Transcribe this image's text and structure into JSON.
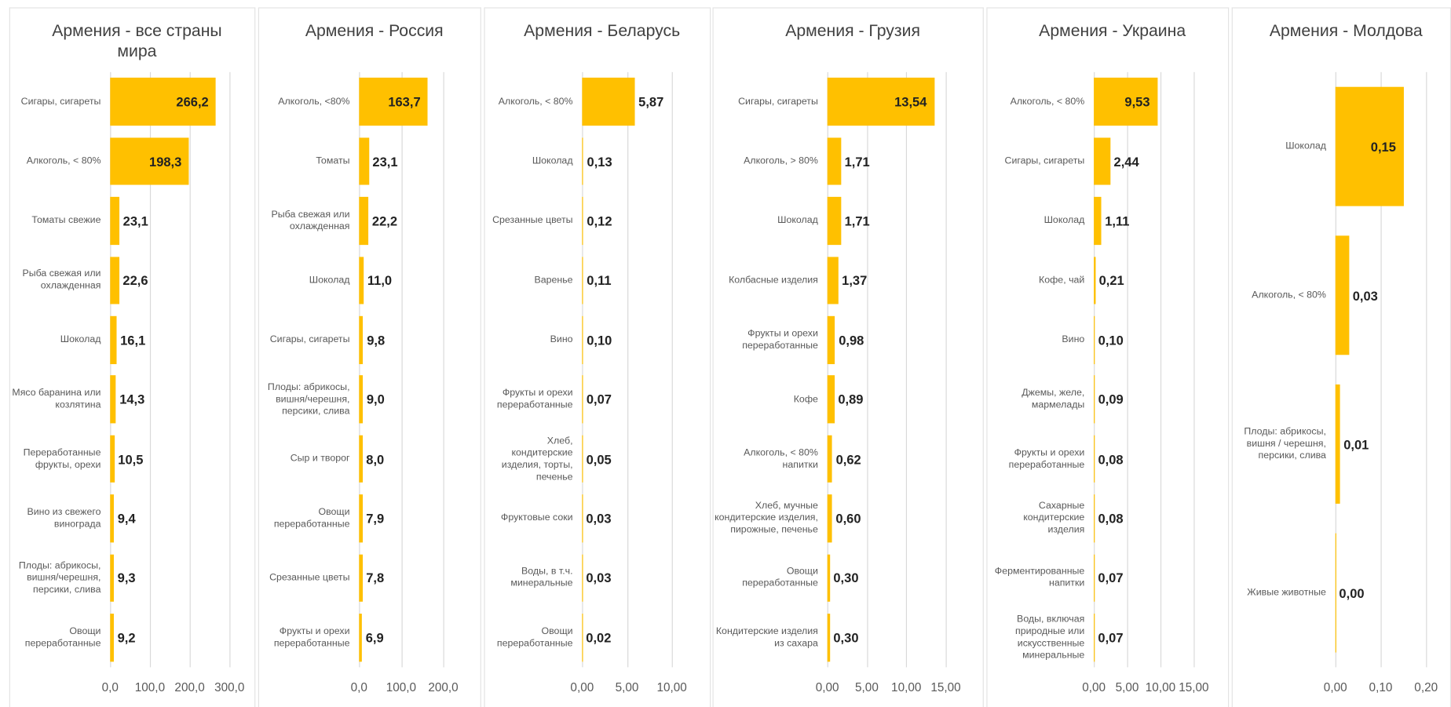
{
  "chart_data": [
    {
      "type": "bar",
      "orientation": "horizontal",
      "title": "Армения - все страны мира",
      "color": "#FFC000",
      "categories": [
        "Сигары, сигареты",
        "Алкоголь, < 80%",
        "Томаты свежие",
        "Рыба свежая или охлажденная",
        "Шоколад",
        "Мясо баранина или козлятина",
        "Переработанные фрукты, орехи",
        "Вино из свежего винограда",
        "Плоды: абрикосы, вишня/черешня, персики, слива",
        "Овощи переработанные"
      ],
      "values": [
        266.2,
        198.3,
        23.1,
        22.6,
        16.1,
        14.3,
        10.5,
        9.4,
        9.3,
        9.2
      ],
      "value_labels": [
        "266,2",
        "198,3",
        "23,1",
        "22,6",
        "16,1",
        "14,3",
        "10,5",
        "9,4",
        "9,3",
        "9,2"
      ],
      "xlim": [
        0,
        300
      ],
      "xticks": [
        {
          "value": 0,
          "label": "0,0"
        },
        {
          "value": 100,
          "label": "100,0"
        },
        {
          "value": 200,
          "label": "200,0"
        },
        {
          "value": 300,
          "label": "300,0"
        }
      ],
      "grid": true
    },
    {
      "type": "bar",
      "orientation": "horizontal",
      "title": "Армения - Россия",
      "color": "#FFC000",
      "categories": [
        "Алкоголь, <80%",
        "Томаты",
        "Рыба свежая или охлажденная",
        "Шоколад",
        "Сигары, сигареты",
        "Плоды: абрикосы, вишня/черешня, персики, слива",
        "Сыр и творог",
        "Овощи переработанные",
        "Срезанные цветы",
        "Фрукты и орехи переработанные"
      ],
      "values": [
        163.7,
        23.1,
        22.2,
        11.0,
        9.8,
        9.0,
        8.0,
        7.9,
        7.8,
        6.9
      ],
      "value_labels": [
        "163,7",
        "23,1",
        "22,2",
        "11,0",
        "9,8",
        "9,0",
        "8,0",
        "7,9",
        "7,8",
        "6,9"
      ],
      "xlim": [
        0,
        200
      ],
      "xticks": [
        {
          "value": 0,
          "label": "0,0"
        },
        {
          "value": 100,
          "label": "100,0"
        },
        {
          "value": 200,
          "label": "200,0"
        }
      ],
      "grid": true
    },
    {
      "type": "bar",
      "orientation": "horizontal",
      "title": "Армения - Беларусь",
      "color": "#FFC000",
      "categories": [
        "Алкоголь, < 80%",
        "Шоколад",
        "Срезанные цветы",
        "Варенье",
        "Вино",
        "Фрукты и орехи переработанные",
        "Хлеб, кондитерские изделия, торты, печенье",
        "Фруктовые соки",
        "Воды, в т.ч. минеральные",
        "Овощи переработанные"
      ],
      "values": [
        5.87,
        0.13,
        0.12,
        0.11,
        0.1,
        0.07,
        0.05,
        0.03,
        0.03,
        0.02
      ],
      "value_labels": [
        "5,87",
        "0,13",
        "0,12",
        "0,11",
        "0,10",
        "0,07",
        "0,05",
        "0,03",
        "0,03",
        "0,02"
      ],
      "xlim": [
        0,
        10
      ],
      "xticks": [
        {
          "value": 0,
          "label": "0,00"
        },
        {
          "value": 5,
          "label": "5,00"
        },
        {
          "value": 10,
          "label": "10,00"
        }
      ],
      "grid": true
    },
    {
      "type": "bar",
      "orientation": "horizontal",
      "title": "Армения - Грузия",
      "color": "#FFC000",
      "categories": [
        "Сигары, сигареты",
        "Алкоголь, > 80%",
        "Шоколад",
        "Колбасные изделия",
        "Фрукты и орехи переработанные",
        "Кофе",
        "Алкоголь, < 80% напитки",
        "Хлеб, мучные кондитерские изделия, пирожные, печенье",
        "Овощи переработанные",
        "Кондитерские изделия из сахара"
      ],
      "values": [
        13.54,
        1.71,
        1.71,
        1.37,
        0.98,
        0.89,
        0.62,
        0.6,
        0.3,
        0.3
      ],
      "value_labels": [
        "13,54",
        "1,71",
        "1,71",
        "1,37",
        "0,98",
        "0,89",
        "0,62",
        "0,60",
        "0,30",
        "0,30"
      ],
      "xlim": [
        0,
        15
      ],
      "xticks": [
        {
          "value": 0,
          "label": "0,00"
        },
        {
          "value": 5,
          "label": "5,00"
        },
        {
          "value": 10,
          "label": "10,00"
        },
        {
          "value": 15,
          "label": "15,00"
        }
      ],
      "grid": true
    },
    {
      "type": "bar",
      "orientation": "horizontal",
      "title": "Армения - Украина",
      "color": "#FFC000",
      "categories": [
        "Алкоголь,  < 80%",
        "Сигары, сигареты",
        "Шоколад",
        "Кофе, чай",
        "Вино",
        "Джемы, желе, мармелады",
        "Фрукты и орехи переработанные",
        "Сахарные кондитерские изделия",
        "Ферментированные напитки",
        "Воды, включая природные или искусственные минеральные"
      ],
      "values": [
        9.53,
        2.44,
        1.11,
        0.21,
        0.1,
        0.09,
        0.08,
        0.08,
        0.07,
        0.07
      ],
      "value_labels": [
        "9,53",
        "2,44",
        "1,11",
        "0,21",
        "0,10",
        "0,09",
        "0,08",
        "0,08",
        "0,07",
        "0,07"
      ],
      "xlim": [
        0,
        15
      ],
      "xticks": [
        {
          "value": 0,
          "label": "0,00"
        },
        {
          "value": 5,
          "label": "5,00"
        },
        {
          "value": 10,
          "label": "10,00"
        },
        {
          "value": 15,
          "label": "15,00"
        }
      ],
      "grid": true
    },
    {
      "type": "bar",
      "orientation": "horizontal",
      "title": "Армения - Молдова",
      "color": "#FFC000",
      "categories": [
        "Шоколад",
        "Алкоголь, < 80%",
        "Плоды: абрикосы, вишня / черешня, персики, слива",
        "Живые животные"
      ],
      "values": [
        0.15,
        0.03,
        0.01,
        0.0
      ],
      "value_labels": [
        "0,15",
        "0,03",
        "0,01",
        "0,00"
      ],
      "xlim": [
        0,
        0.2
      ],
      "xticks": [
        {
          "value": 0,
          "label": "0,00"
        },
        {
          "value": 0.1,
          "label": "0,10"
        },
        {
          "value": 0.2,
          "label": "0,20"
        }
      ],
      "grid": true
    }
  ]
}
